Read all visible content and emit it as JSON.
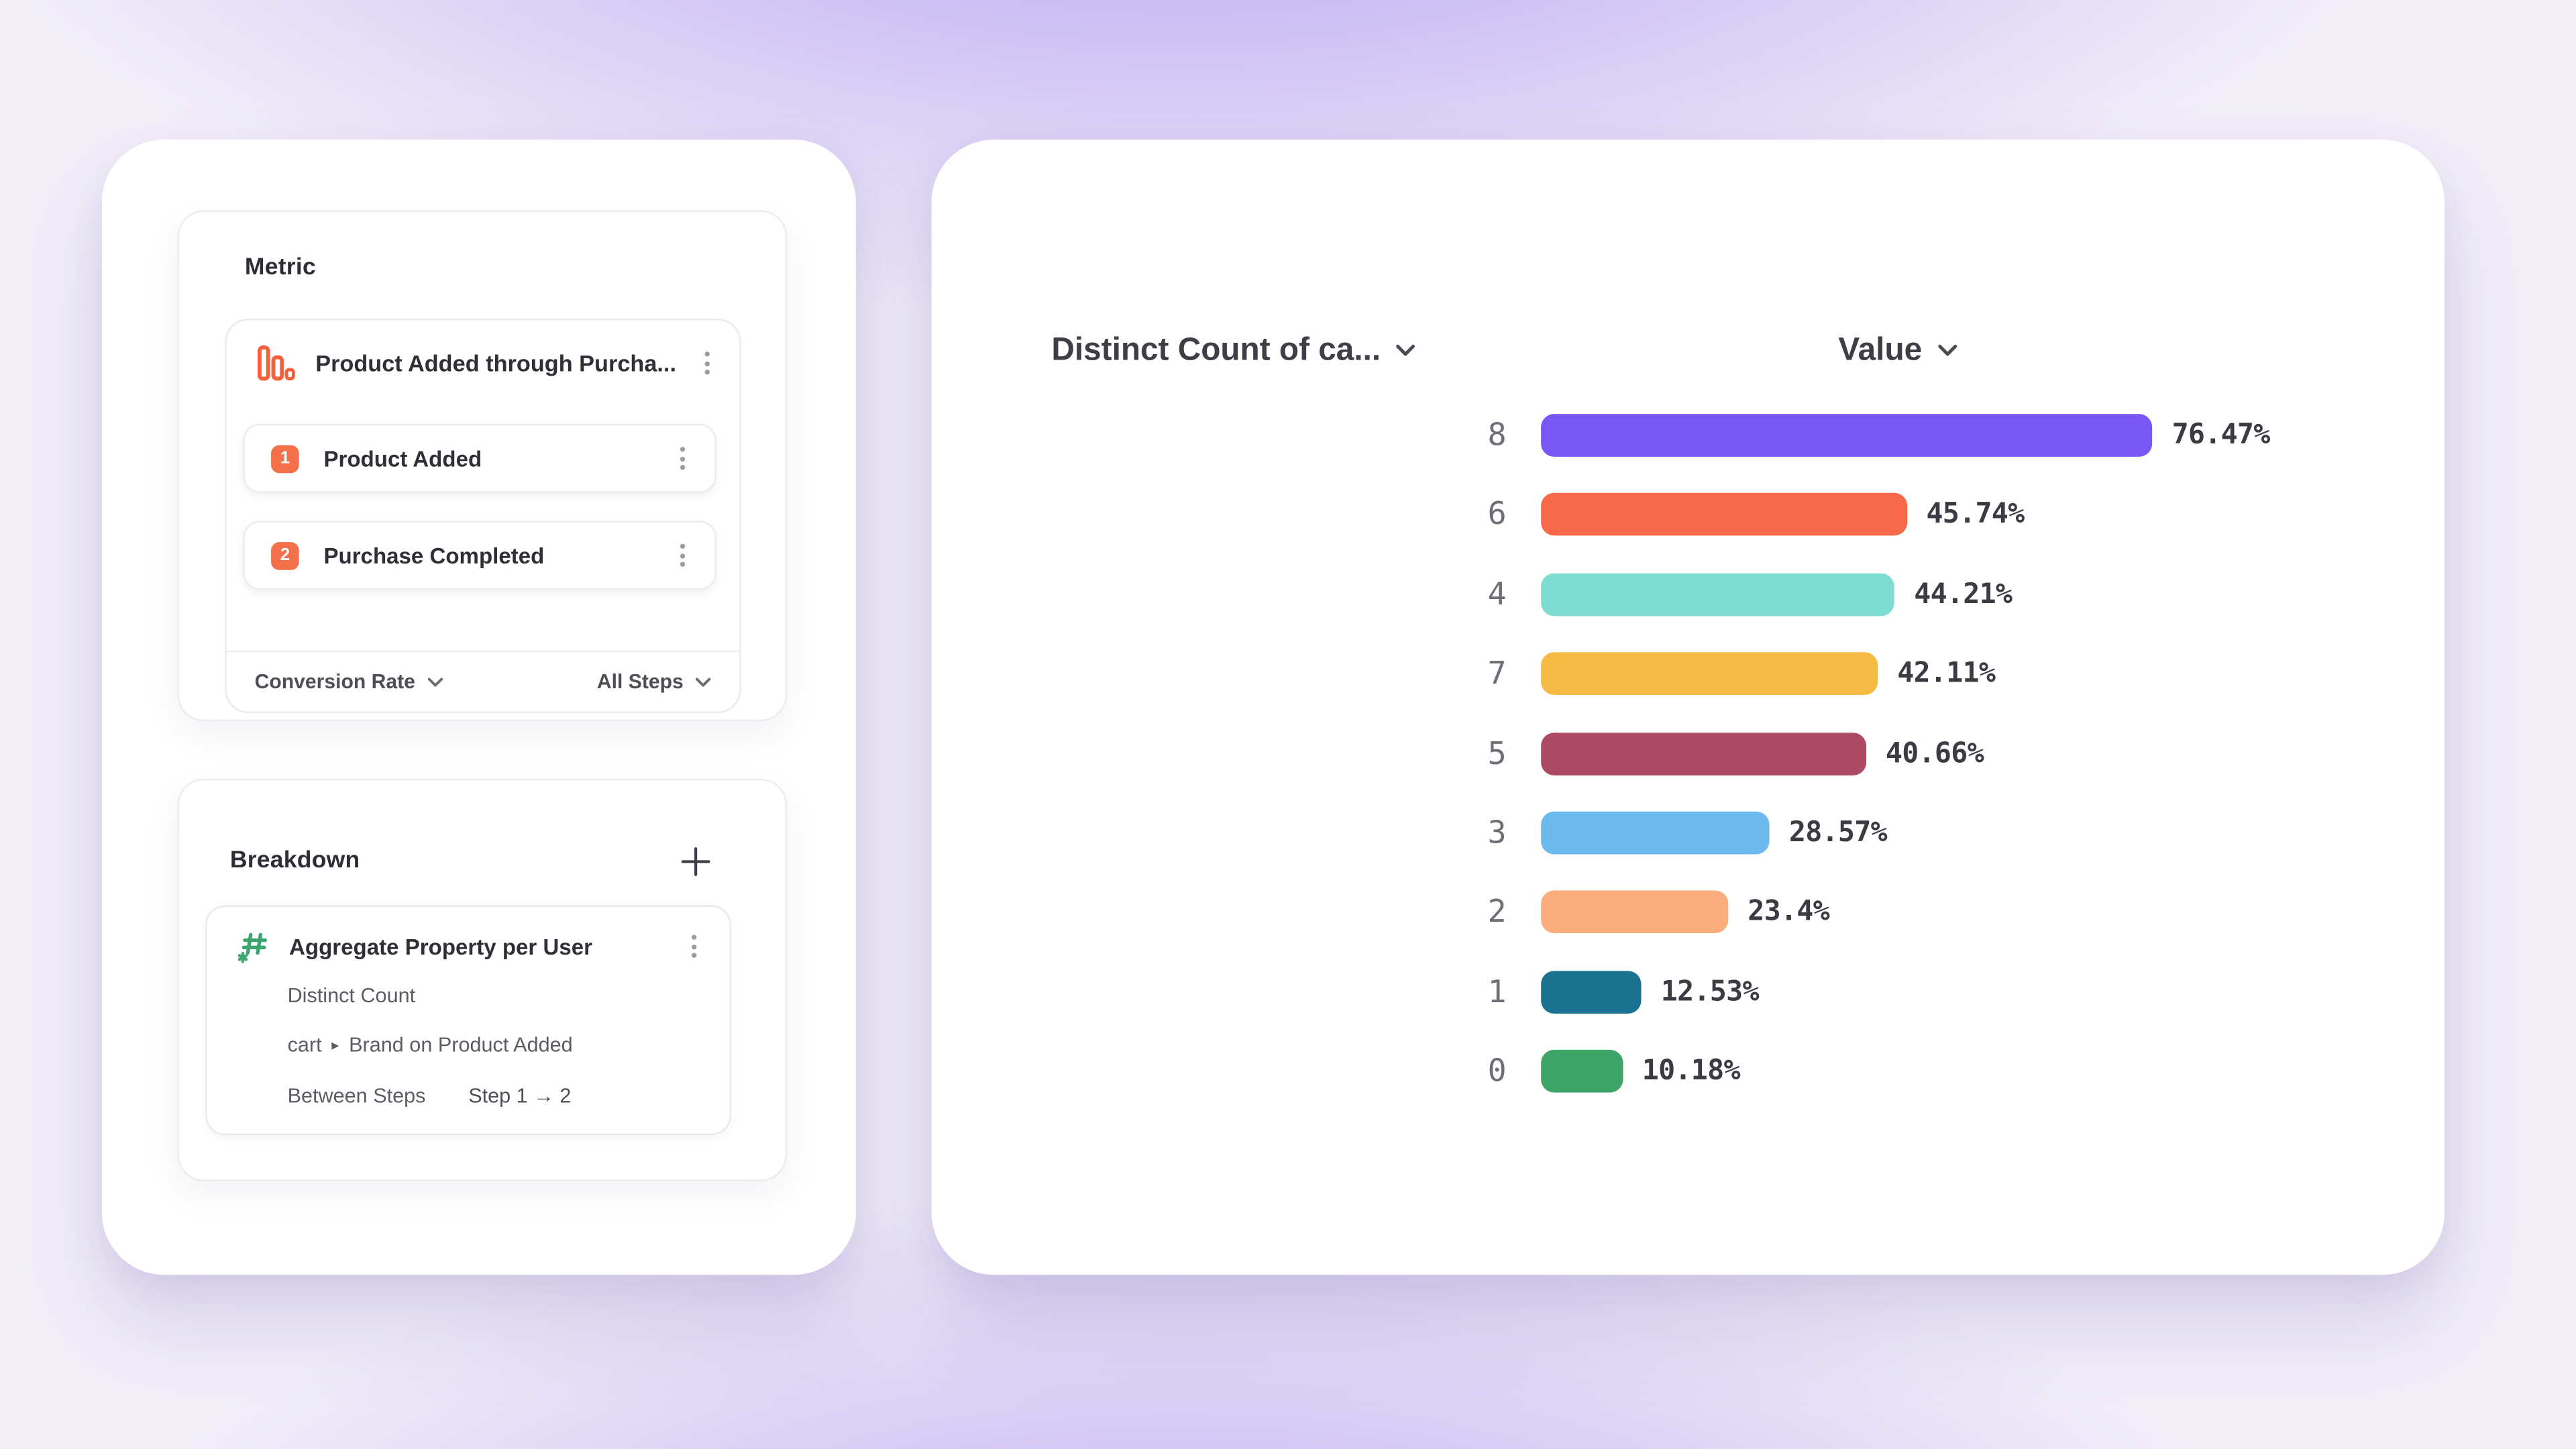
{
  "metric_panel": {
    "title": "Metric",
    "funnel": {
      "name": "Product Added through Purcha...",
      "icon": "funnel-bars-icon",
      "steps": [
        {
          "index": "1",
          "label": "Product Added"
        },
        {
          "index": "2",
          "label": "Purchase Completed"
        }
      ],
      "conversion_label": "Conversion Rate",
      "steps_filter_label": "All Steps"
    }
  },
  "breakdown_panel": {
    "title": "Breakdown",
    "add_icon": "plus-icon",
    "property": {
      "icon": "hash-asterisk-icon",
      "name": "Aggregate Property per User",
      "aggregation": "Distinct Count",
      "path_prefix": "cart",
      "path_separator": "▸",
      "path_rest": "Brand on Product Added",
      "scope_label": "Between Steps",
      "scope_value": "Step 1 → 2"
    }
  },
  "chart_header": {
    "left": "Distinct Count of ca...",
    "right": "Value"
  },
  "chart_data": {
    "type": "bar",
    "orientation": "horizontal",
    "categories": [
      "8",
      "6",
      "4",
      "7",
      "5",
      "3",
      "2",
      "1",
      "0"
    ],
    "values": [
      76.47,
      45.74,
      44.21,
      42.11,
      40.66,
      28.57,
      23.4,
      12.53,
      10.18
    ],
    "value_labels": [
      "76.47%",
      "45.74%",
      "44.21%",
      "42.11%",
      "40.66%",
      "28.57%",
      "23.4%",
      "12.53%",
      "10.18%"
    ],
    "bar_colors": [
      "#7857F6",
      "#F8684A",
      "#7EDCD2",
      "#F7BA43",
      "#AB4A62",
      "#6CB9EE",
      "#FBAE7C",
      "#1A7190",
      "#3EA468"
    ],
    "xlim": [
      0,
      100
    ],
    "grid": false,
    "legend": "none"
  },
  "colors": {
    "accent_orange": "#F3704A",
    "accent_green": "#3CA46D",
    "kebab_gray": "#9B9BA3",
    "value_label": "#3B3B43",
    "category_label": "#6E6E76"
  }
}
